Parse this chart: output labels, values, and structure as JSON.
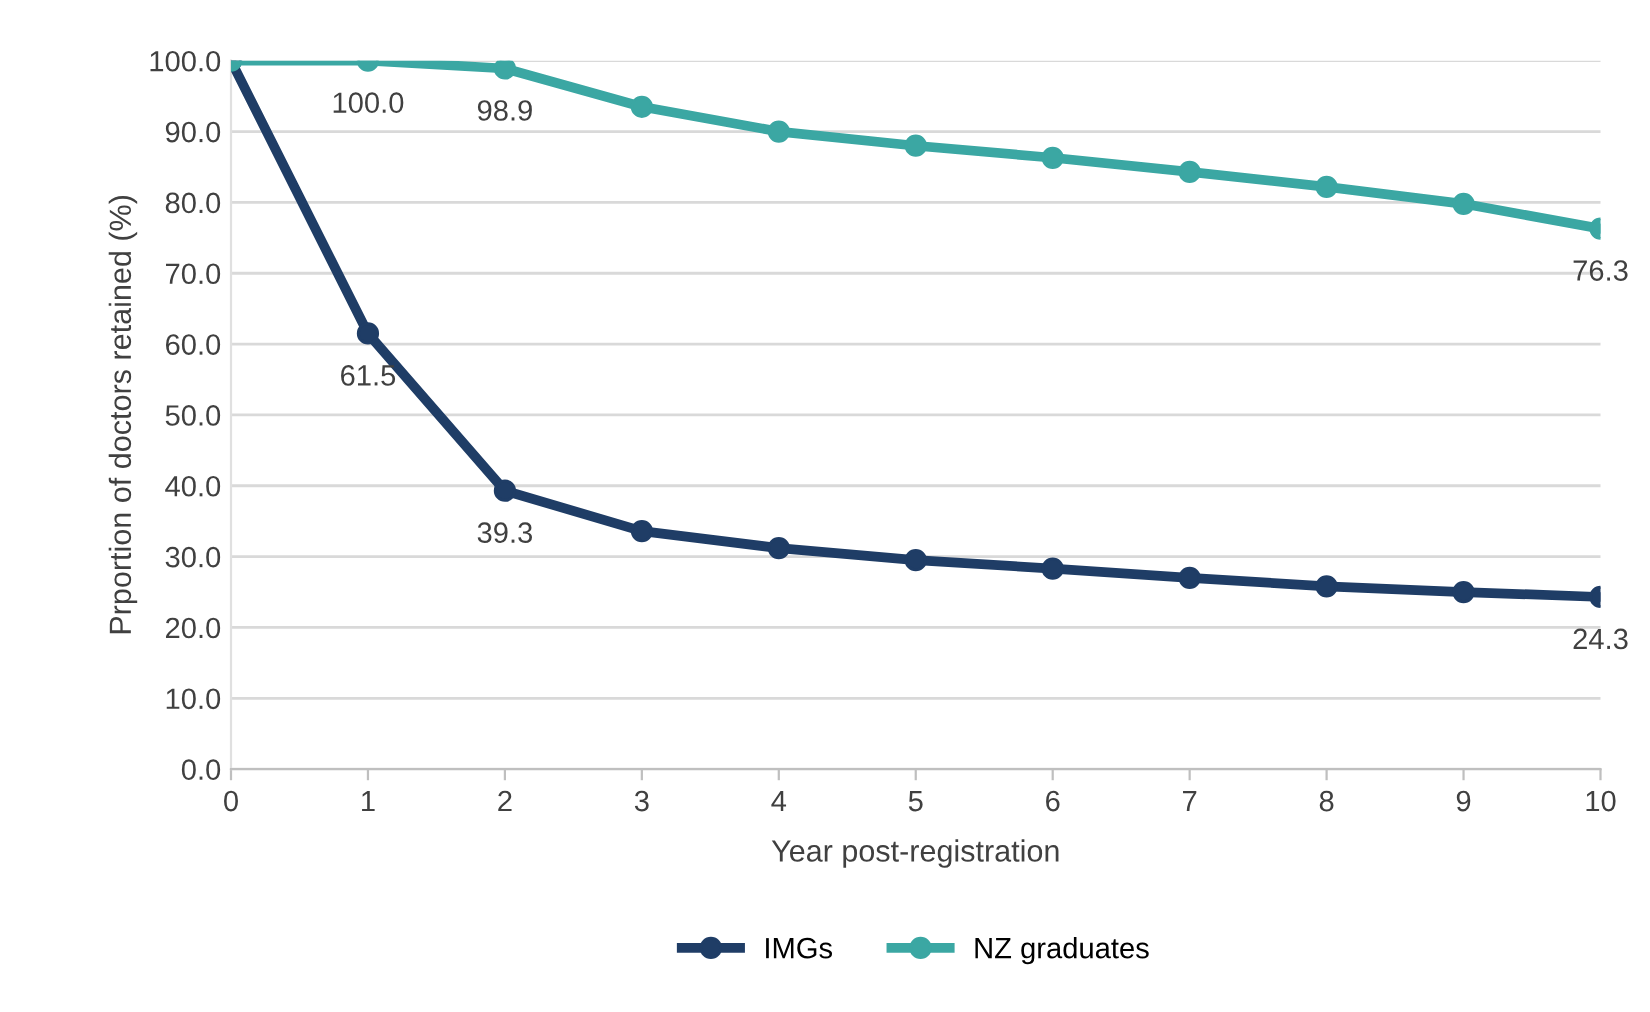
{
  "chart_data": {
    "type": "line",
    "xlabel": "Year post-registration",
    "ylabel": "Prportion of doctors retained (%)",
    "x": [
      0,
      1,
      2,
      3,
      4,
      5,
      6,
      7,
      8,
      9,
      10
    ],
    "xlim": [
      0,
      10
    ],
    "xticks": [
      0,
      1,
      2,
      3,
      4,
      5,
      6,
      7,
      8,
      9,
      10
    ],
    "ylim": [
      0,
      100
    ],
    "yticks": [
      {
        "value": 0,
        "label": "0.0"
      },
      {
        "value": 10,
        "label": "10.0"
      },
      {
        "value": 20,
        "label": "20.0"
      },
      {
        "value": 30,
        "label": "30.0"
      },
      {
        "value": 40,
        "label": "40.0"
      },
      {
        "value": 50,
        "label": "50.0"
      },
      {
        "value": 60,
        "label": "60.0"
      },
      {
        "value": 70,
        "label": "70.0"
      },
      {
        "value": 80,
        "label": "80.0"
      },
      {
        "value": 90,
        "label": "90.0"
      },
      {
        "value": 100,
        "label": "100.0"
      }
    ],
    "grid": "y",
    "legend": "bottom",
    "marker": "circle",
    "line_style": "solid",
    "series": [
      {
        "name": "IMGs",
        "color": "#1f3d66",
        "values": [
          100,
          61.5,
          39.3,
          33.6,
          31.2,
          29.5,
          28.3,
          27.0,
          25.8,
          25.0,
          24.3
        ],
        "value_labels": [
          null,
          "61.5",
          "39.3",
          null,
          null,
          null,
          null,
          null,
          null,
          null,
          "24.3"
        ]
      },
      {
        "name": "NZ graduates",
        "color": "#3ba7a3",
        "values": [
          100,
          100.0,
          98.9,
          93.5,
          90.0,
          88.0,
          86.3,
          84.3,
          82.2,
          79.8,
          76.3
        ],
        "value_labels": [
          null,
          "100.0",
          "98.9",
          null,
          null,
          null,
          null,
          null,
          null,
          null,
          "76.3"
        ]
      }
    ]
  }
}
